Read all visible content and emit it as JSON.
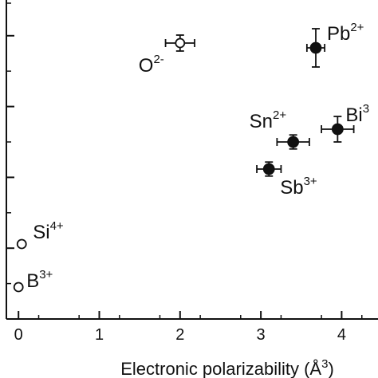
{
  "chart_data": {
    "type": "scatter",
    "title": "",
    "xlabel": "Electronic polarizability (Å",
    "xlabel_sup": "3",
    "xlabel_close": ")",
    "ylabel": "",
    "xlim": [
      -0.15,
      4.45
    ],
    "xticks": [
      {
        "value": 0,
        "label": "0"
      },
      {
        "value": 1,
        "label": "1"
      },
      {
        "value": 2,
        "label": "2"
      },
      {
        "value": 3,
        "label": "3"
      },
      {
        "value": 4,
        "label": "4"
      }
    ],
    "ylim": [
      0,
      1
    ],
    "grid": false,
    "legend": "none",
    "points": [
      {
        "id": "b",
        "ion": "B",
        "charge": "3+",
        "x": 0.0,
        "y": 0.1,
        "filled": false,
        "xerr": 0,
        "yerr": 0
      },
      {
        "id": "si",
        "ion": "Si",
        "charge": "4+",
        "x": 0.04,
        "y": 0.235,
        "filled": false,
        "xerr": 0,
        "yerr": 0
      },
      {
        "id": "o",
        "ion": "O",
        "charge": "2-",
        "x": 2.0,
        "y": 0.865,
        "filled": false,
        "xerr": 0.18,
        "yerr": 0.025
      },
      {
        "id": "sb",
        "ion": "Sb",
        "charge": "3+",
        "x": 3.1,
        "y": 0.47,
        "filled": true,
        "xerr": 0.15,
        "yerr": 0.022
      },
      {
        "id": "sn",
        "ion": "Sn",
        "charge": "2+",
        "x": 3.4,
        "y": 0.555,
        "filled": true,
        "xerr": 0.2,
        "yerr": 0.022
      },
      {
        "id": "pb",
        "ion": "Pb",
        "charge": "2+",
        "x": 3.68,
        "y": 0.85,
        "filled": true,
        "xerr": 0.11,
        "yerr": 0.06
      },
      {
        "id": "bi",
        "ion": "Bi",
        "charge": "3",
        "x": 3.95,
        "y": 0.595,
        "filled": true,
        "xerr": 0.2,
        "yerr": 0.04
      }
    ],
    "colors": {
      "marker": "#111111",
      "background": "#ffffff"
    }
  }
}
